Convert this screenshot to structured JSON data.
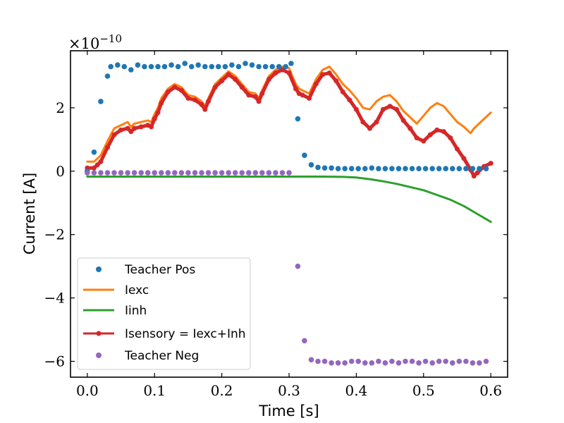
{
  "chart_data": {
    "type": "line",
    "title": "",
    "xlabel": "Time [s]",
    "ylabel": "Current [A]",
    "xlim": [
      -0.025,
      0.625
    ],
    "ylim": [
      -6.5,
      3.8
    ],
    "x_ticks": [
      0.0,
      0.1,
      0.2,
      0.3,
      0.4,
      0.5,
      0.6
    ],
    "x_tick_labels": [
      "0.0",
      "0.1",
      "0.2",
      "0.3",
      "0.4",
      "0.5",
      "0.6"
    ],
    "y_ticks": [
      -6,
      -4,
      -2,
      0,
      2
    ],
    "y_tick_labels": [
      "−6",
      "−4",
      "−2",
      "0",
      "2"
    ],
    "offset_text": {
      "base": "×10",
      "exponent": "−10"
    },
    "legend_position": "lower-left",
    "series": [
      {
        "name": "Iexc",
        "legend_label": "Iexc",
        "style": "line",
        "color": "#ff7f0e",
        "x": [
          0.0,
          0.01,
          0.015,
          0.02,
          0.03,
          0.04,
          0.05,
          0.06,
          0.065,
          0.07,
          0.08,
          0.09,
          0.095,
          0.1,
          0.105,
          0.11,
          0.12,
          0.13,
          0.14,
          0.15,
          0.16,
          0.17,
          0.175,
          0.18,
          0.19,
          0.2,
          0.21,
          0.22,
          0.23,
          0.24,
          0.25,
          0.255,
          0.26,
          0.27,
          0.28,
          0.29,
          0.3,
          0.31,
          0.315,
          0.32,
          0.33,
          0.34,
          0.35,
          0.36,
          0.37,
          0.38,
          0.39,
          0.4,
          0.41,
          0.42,
          0.43,
          0.44,
          0.45,
          0.46,
          0.47,
          0.48,
          0.49,
          0.5,
          0.51,
          0.52,
          0.53,
          0.54,
          0.55,
          0.56,
          0.57,
          0.575,
          0.58,
          0.59,
          0.6
        ],
        "y": [
          0.3,
          0.3,
          0.4,
          0.5,
          0.95,
          1.35,
          1.45,
          1.55,
          1.4,
          1.5,
          1.55,
          1.6,
          1.55,
          1.8,
          2.0,
          2.3,
          2.6,
          2.75,
          2.65,
          2.4,
          2.35,
          2.2,
          2.05,
          2.3,
          2.75,
          2.95,
          3.15,
          3.0,
          2.75,
          2.5,
          2.45,
          2.3,
          2.55,
          3.0,
          3.2,
          3.3,
          3.25,
          2.75,
          2.6,
          2.55,
          2.45,
          2.9,
          3.2,
          3.3,
          3.05,
          2.75,
          2.55,
          2.3,
          2.0,
          1.95,
          2.2,
          2.35,
          2.4,
          2.2,
          1.9,
          1.7,
          1.5,
          1.75,
          2.0,
          2.15,
          2.05,
          1.8,
          1.55,
          1.4,
          1.2,
          1.35,
          1.45,
          1.65,
          1.85
        ]
      },
      {
        "name": "Iinh",
        "legend_label": "Iinh",
        "style": "line",
        "color": "#2ca02c",
        "x": [
          0.0,
          0.1,
          0.2,
          0.3,
          0.35,
          0.38,
          0.4,
          0.42,
          0.44,
          0.46,
          0.48,
          0.5,
          0.52,
          0.54,
          0.56,
          0.58,
          0.6
        ],
        "y": [
          -0.17,
          -0.17,
          -0.17,
          -0.17,
          -0.17,
          -0.18,
          -0.2,
          -0.25,
          -0.32,
          -0.4,
          -0.5,
          -0.6,
          -0.75,
          -0.9,
          -1.1,
          -1.35,
          -1.6
        ]
      },
      {
        "name": "Isensory",
        "legend_label": "Isensory = Iexc+Inh",
        "style": "line-marker",
        "color": "#d62728",
        "x": [
          0.0,
          0.01,
          0.015,
          0.02,
          0.03,
          0.04,
          0.05,
          0.06,
          0.065,
          0.07,
          0.08,
          0.09,
          0.095,
          0.1,
          0.105,
          0.11,
          0.12,
          0.13,
          0.14,
          0.15,
          0.16,
          0.17,
          0.175,
          0.18,
          0.19,
          0.2,
          0.21,
          0.22,
          0.23,
          0.24,
          0.25,
          0.255,
          0.26,
          0.27,
          0.28,
          0.29,
          0.3,
          0.31,
          0.315,
          0.32,
          0.33,
          0.34,
          0.35,
          0.36,
          0.37,
          0.38,
          0.39,
          0.4,
          0.41,
          0.42,
          0.43,
          0.44,
          0.45,
          0.46,
          0.47,
          0.48,
          0.49,
          0.5,
          0.51,
          0.52,
          0.53,
          0.54,
          0.55,
          0.56,
          0.57,
          0.575,
          0.58,
          0.59,
          0.6
        ],
        "y": [
          0.1,
          0.1,
          0.2,
          0.3,
          0.75,
          1.15,
          1.3,
          1.35,
          1.25,
          1.35,
          1.4,
          1.45,
          1.4,
          1.65,
          1.85,
          2.15,
          2.5,
          2.65,
          2.55,
          2.3,
          2.25,
          2.1,
          1.95,
          2.2,
          2.65,
          2.85,
          3.05,
          2.9,
          2.65,
          2.4,
          2.35,
          2.2,
          2.45,
          2.9,
          3.1,
          3.2,
          3.1,
          2.6,
          2.45,
          2.4,
          2.3,
          2.75,
          3.05,
          3.1,
          2.85,
          2.5,
          2.25,
          1.95,
          1.55,
          1.35,
          1.55,
          1.95,
          2.05,
          1.95,
          1.6,
          1.35,
          1.05,
          0.95,
          1.15,
          1.3,
          1.25,
          1.05,
          0.7,
          0.4,
          0.05,
          -0.15,
          -0.05,
          0.15,
          0.25
        ]
      },
      {
        "name": "Teacher Pos",
        "legend_label": "Teacher Pos",
        "style": "scatter",
        "color": "#1f77b4",
        "x": [
          0.0,
          0.01,
          0.02,
          0.03,
          0.035,
          0.045,
          0.055,
          0.065,
          0.075,
          0.085,
          0.095,
          0.105,
          0.115,
          0.125,
          0.135,
          0.145,
          0.155,
          0.165,
          0.175,
          0.185,
          0.195,
          0.205,
          0.215,
          0.225,
          0.235,
          0.245,
          0.255,
          0.265,
          0.275,
          0.285,
          0.295,
          0.303,
          0.313,
          0.323,
          0.333,
          0.343,
          0.353,
          0.363,
          0.373,
          0.383,
          0.393,
          0.403,
          0.413,
          0.423,
          0.433,
          0.443,
          0.453,
          0.463,
          0.473,
          0.483,
          0.493,
          0.503,
          0.513,
          0.523,
          0.533,
          0.543,
          0.553,
          0.563,
          0.573,
          0.583,
          0.593
        ],
        "y": [
          0.0,
          0.6,
          2.2,
          3.0,
          3.3,
          3.35,
          3.3,
          3.2,
          3.35,
          3.3,
          3.3,
          3.3,
          3.3,
          3.35,
          3.3,
          3.4,
          3.3,
          3.35,
          3.3,
          3.3,
          3.3,
          3.3,
          3.35,
          3.3,
          3.4,
          3.35,
          3.3,
          3.3,
          3.3,
          3.3,
          3.3,
          3.4,
          1.65,
          0.5,
          0.2,
          0.12,
          0.1,
          0.1,
          0.08,
          0.08,
          0.08,
          0.08,
          0.08,
          0.1,
          0.08,
          0.08,
          0.08,
          0.08,
          0.08,
          0.08,
          0.08,
          0.08,
          0.08,
          0.08,
          0.08,
          0.08,
          0.08,
          0.08,
          0.08,
          0.08,
          0.08
        ]
      },
      {
        "name": "Teacher Neg",
        "legend_label": "Teacher Neg",
        "style": "scatter",
        "color": "#9467bd",
        "x": [
          0.0,
          0.01,
          0.02,
          0.03,
          0.04,
          0.05,
          0.06,
          0.07,
          0.08,
          0.09,
          0.1,
          0.11,
          0.12,
          0.13,
          0.14,
          0.15,
          0.16,
          0.17,
          0.18,
          0.19,
          0.2,
          0.21,
          0.22,
          0.23,
          0.24,
          0.25,
          0.26,
          0.27,
          0.28,
          0.29,
          0.3,
          0.313,
          0.323,
          0.333,
          0.343,
          0.353,
          0.363,
          0.373,
          0.383,
          0.393,
          0.403,
          0.413,
          0.423,
          0.433,
          0.443,
          0.453,
          0.463,
          0.473,
          0.483,
          0.493,
          0.503,
          0.513,
          0.523,
          0.533,
          0.543,
          0.553,
          0.563,
          0.573,
          0.583,
          0.593
        ],
        "y": [
          -0.05,
          -0.05,
          -0.05,
          -0.05,
          -0.05,
          -0.05,
          -0.05,
          -0.05,
          -0.05,
          -0.05,
          -0.05,
          -0.05,
          -0.05,
          -0.05,
          -0.05,
          -0.05,
          -0.05,
          -0.05,
          -0.05,
          -0.05,
          -0.05,
          -0.05,
          -0.05,
          -0.05,
          -0.05,
          -0.05,
          -0.05,
          -0.05,
          -0.05,
          -0.05,
          -0.05,
          -3.0,
          -5.35,
          -5.95,
          -6.0,
          -6.0,
          -6.05,
          -6.05,
          -6.05,
          -6.0,
          -6.0,
          -6.05,
          -6.05,
          -6.0,
          -6.05,
          -6.0,
          -6.05,
          -6.0,
          -6.0,
          -6.05,
          -6.0,
          -6.05,
          -6.0,
          -6.0,
          -6.05,
          -6.0,
          -6.0,
          -6.05,
          -6.05,
          -6.0
        ]
      }
    ]
  }
}
